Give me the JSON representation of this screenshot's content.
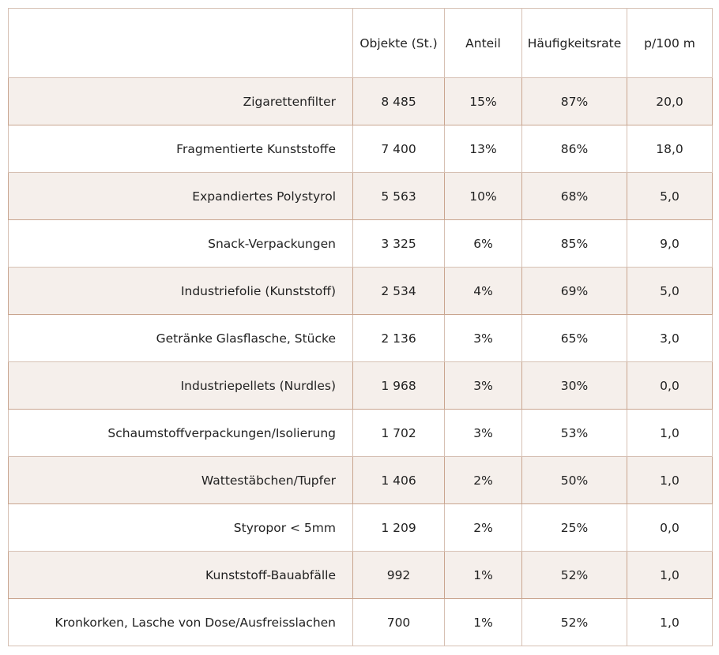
{
  "chart_data": {
    "type": "table",
    "columns": [
      "",
      "Objekte (St.)",
      "Anteil",
      "Häufigkeitsrate",
      "p/100 m"
    ],
    "rows": [
      [
        "Zigarettenfilter",
        "8 485",
        "15%",
        "87%",
        "20,0"
      ],
      [
        "Fragmentierte Kunststoffe",
        "7 400",
        "13%",
        "86%",
        "18,0"
      ],
      [
        "Expandiertes Polystyrol",
        "5 563",
        "10%",
        "68%",
        "5,0"
      ],
      [
        "Snack-Verpackungen",
        "3 325",
        "6%",
        "85%",
        "9,0"
      ],
      [
        "Industriefolie (Kunststoff)",
        "2 534",
        "4%",
        "69%",
        "5,0"
      ],
      [
        "Getränke Glasflasche, Stücke",
        "2 136",
        "3%",
        "65%",
        "3,0"
      ],
      [
        "Industriepellets (Nurdles)",
        "1 968",
        "3%",
        "30%",
        "0,0"
      ],
      [
        "Schaumstoffverpackungen/Isolierung",
        "1 702",
        "3%",
        "53%",
        "1,0"
      ],
      [
        "Wattestäbchen/Tupfer",
        "1 406",
        "2%",
        "50%",
        "1,0"
      ],
      [
        "Styropor < 5mm",
        "1 209",
        "2%",
        "25%",
        "0,0"
      ],
      [
        "Kunststoff-Bauabfälle",
        "992",
        "1%",
        "52%",
        "1,0"
      ],
      [
        "Kronkorken, Lasche von Dose/Ausfreisslachen",
        "700",
        "1%",
        "52%",
        "1,0"
      ]
    ]
  },
  "colors": {
    "row_stripe": "#f5efeb",
    "grid_line": "#c49a80",
    "text": "#222222"
  }
}
